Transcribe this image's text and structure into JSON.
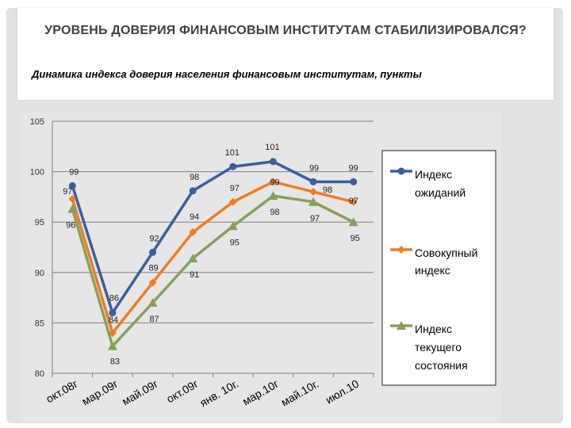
{
  "slide": {
    "title": "УРОВЕНЬ ДОВЕРИЯ ФИНАНСОВЫМ ИНСТИТУТАМ СТАБИЛИЗИРОВАЛСЯ?",
    "subtitle": "Динамика индекса доверия населения финансовым институтам, пункты"
  },
  "chart_data": {
    "type": "line",
    "categories": [
      "окт.08г",
      "мар.09г",
      "май.09г",
      "окт.09г",
      "янв. 10г.",
      "мар.10г",
      "май.10г.",
      "июл.10"
    ],
    "ylim": [
      80,
      105
    ],
    "yticks": [
      80,
      85,
      90,
      95,
      100,
      105
    ],
    "grid": true,
    "legend": "right",
    "series": [
      {
        "name": "Индекс ожиданий",
        "color": "#3a5f9e",
        "marker": "circle",
        "values": [
          98.6,
          86,
          92,
          98.1,
          100.5,
          101,
          99,
          99
        ],
        "labels": [
          "99",
          "86",
          "92",
          "98",
          "101",
          "101",
          "99",
          "99"
        ]
      },
      {
        "name": "Совокупный индекс",
        "color": "#ee7d22",
        "marker": "diamond",
        "values": [
          97.3,
          84,
          89,
          94,
          97,
          99,
          98,
          97
        ],
        "labels": [
          "97",
          "84",
          "89",
          "94",
          "97",
          "99",
          "98",
          "97"
        ]
      },
      {
        "name": "Индекс текущего состояния",
        "color": "#86a15a",
        "marker": "triangle",
        "values": [
          96.3,
          82.7,
          87,
          91.4,
          94.6,
          97.6,
          97,
          95
        ],
        "labels": [
          "96",
          "83",
          "87",
          "91",
          "95",
          "98",
          "97",
          "95"
        ]
      }
    ]
  }
}
